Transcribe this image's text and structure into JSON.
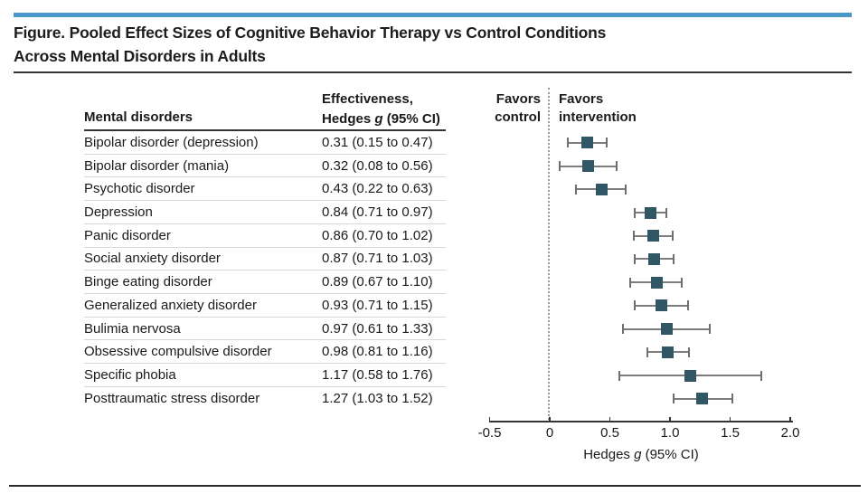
{
  "figure": {
    "title_line1": "Figure. Pooled Effect Sizes of Cognitive Behavior Therapy vs Control Conditions",
    "title_line2": "Across Mental Disorders in Adults",
    "accent_bar_color": "#4a97c8"
  },
  "table": {
    "col1_header": "Mental disorders",
    "col2_header": {
      "line1": "Effectiveness,",
      "line2_pre": "Hedges ",
      "line2_italic": "g",
      "line2_post": " (95% CI)"
    },
    "rows": [
      {
        "disorder": "Bipolar disorder (depression)",
        "effect": "0.31 (0.15 to 0.47)"
      },
      {
        "disorder": "Bipolar disorder (mania)",
        "effect": "0.32 (0.08 to 0.56)"
      },
      {
        "disorder": "Psychotic disorder",
        "effect": "0.43 (0.22 to 0.63)"
      },
      {
        "disorder": "Depression",
        "effect": "0.84 (0.71 to 0.97)"
      },
      {
        "disorder": "Panic disorder",
        "effect": "0.86 (0.70 to 1.02)"
      },
      {
        "disorder": "Social anxiety disorder",
        "effect": "0.87 (0.71 to 1.03)"
      },
      {
        "disorder": "Binge eating disorder",
        "effect": "0.89 (0.67 to 1.10)"
      },
      {
        "disorder": "Generalized anxiety disorder",
        "effect": "0.93 (0.71 to 1.15)"
      },
      {
        "disorder": "Bulimia nervosa",
        "effect": "0.97 (0.61 to 1.33)"
      },
      {
        "disorder": "Obsessive compulsive disorder",
        "effect": "0.98 (0.81 to 1.16)"
      },
      {
        "disorder": "Specific phobia",
        "effect": "1.17 (0.58 to 1.76)"
      },
      {
        "disorder": "Posttraumatic stress disorder",
        "effect": "1.27 (1.03 to 1.52)"
      }
    ]
  },
  "plot": {
    "favors_control": "Favors control",
    "favors_intervention": "Favors intervention",
    "axis_label": {
      "pre": "Hedges ",
      "italic": "g",
      "post": " (95% CI)"
    }
  },
  "chart_data": {
    "type": "scatter",
    "subtype": "forest-plot",
    "title": "Pooled Effect Sizes of Cognitive Behavior Therapy vs Control Conditions Across Mental Disorders in Adults",
    "xlabel": "Hedges g (95% CI)",
    "xlim": [
      -0.5,
      2.0
    ],
    "x_ticks": [
      -0.5,
      0,
      0.5,
      1.0,
      1.5,
      2.0
    ],
    "x_tick_labels": [
      "-0.5",
      "0",
      "0.5",
      "1.0",
      "1.5",
      "2.0"
    ],
    "reference_line_x": 0,
    "grid": false,
    "region_labels": {
      "left": "Favors control",
      "right": "Favors intervention"
    },
    "marker_color": "#315666",
    "whisker_color": "#7d7d7d",
    "categories": [
      "Bipolar disorder (depression)",
      "Bipolar disorder (mania)",
      "Psychotic disorder",
      "Depression",
      "Panic disorder",
      "Social anxiety disorder",
      "Binge eating disorder",
      "Generalized anxiety disorder",
      "Bulimia nervosa",
      "Obsessive compulsive disorder",
      "Specific phobia",
      "Posttraumatic stress disorder"
    ],
    "series": [
      {
        "name": "Hedges g (95% CI)",
        "points": [
          {
            "g": 0.31,
            "lo": 0.15,
            "hi": 0.47
          },
          {
            "g": 0.32,
            "lo": 0.08,
            "hi": 0.56
          },
          {
            "g": 0.43,
            "lo": 0.22,
            "hi": 0.63
          },
          {
            "g": 0.84,
            "lo": 0.71,
            "hi": 0.97
          },
          {
            "g": 0.86,
            "lo": 0.7,
            "hi": 1.02
          },
          {
            "g": 0.87,
            "lo": 0.71,
            "hi": 1.03
          },
          {
            "g": 0.89,
            "lo": 0.67,
            "hi": 1.1
          },
          {
            "g": 0.93,
            "lo": 0.71,
            "hi": 1.15
          },
          {
            "g": 0.97,
            "lo": 0.61,
            "hi": 1.33
          },
          {
            "g": 0.98,
            "lo": 0.81,
            "hi": 1.16
          },
          {
            "g": 1.17,
            "lo": 0.58,
            "hi": 1.76
          },
          {
            "g": 1.27,
            "lo": 1.03,
            "hi": 1.52
          }
        ]
      }
    ]
  }
}
